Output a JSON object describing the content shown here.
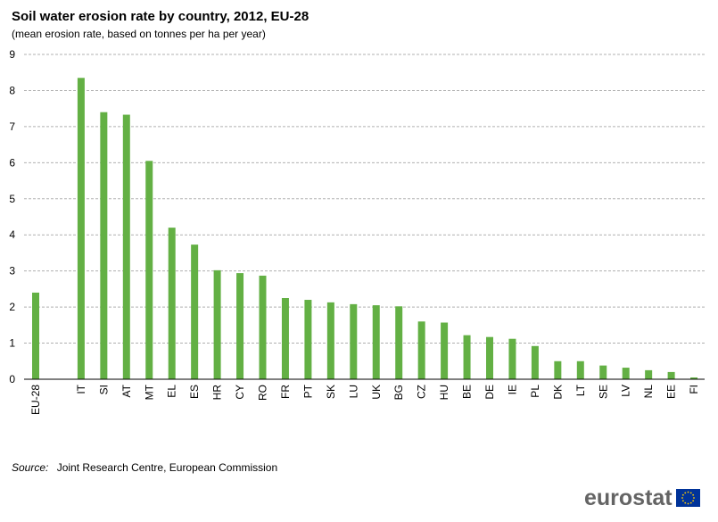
{
  "title": "Soil water erosion rate by country, 2012, EU-28",
  "subtitle": "(mean erosion rate, based on tonnes per ha per year)",
  "source": {
    "label": "Source:",
    "text": "Joint Research Centre, European Commission"
  },
  "logo": {
    "text": "eurostat",
    "flag_icon": "eu-flag-icon"
  },
  "colors": {
    "bar": "#63b044",
    "grid": "#b0b0b0",
    "axis": "#000000",
    "flag_blue": "#003399",
    "flag_stars": "#ffcc00"
  },
  "chart_data": {
    "type": "bar",
    "categories": [
      "EU-28",
      "",
      "IT",
      "SI",
      "AT",
      "MT",
      "EL",
      "ES",
      "HR",
      "CY",
      "RO",
      "FR",
      "PT",
      "SK",
      "LU",
      "UK",
      "BG",
      "CZ",
      "HU",
      "BE",
      "DE",
      "IE",
      "PL",
      "DK",
      "LT",
      "SE",
      "LV",
      "NL",
      "EE",
      "FI"
    ],
    "values": [
      2.4,
      null,
      8.35,
      7.4,
      7.33,
      6.05,
      4.2,
      3.73,
      3.02,
      2.94,
      2.87,
      2.25,
      2.2,
      2.13,
      2.08,
      2.05,
      2.02,
      1.6,
      1.57,
      1.22,
      1.17,
      1.12,
      0.92,
      0.5,
      0.5,
      0.38,
      0.32,
      0.25,
      0.2,
      0.05
    ],
    "ylim": [
      0,
      9
    ],
    "yticks": [
      0,
      1,
      2,
      3,
      4,
      5,
      6,
      7,
      8,
      9
    ],
    "xlabel": "",
    "ylabel": "",
    "grid": true,
    "legend": "none"
  }
}
